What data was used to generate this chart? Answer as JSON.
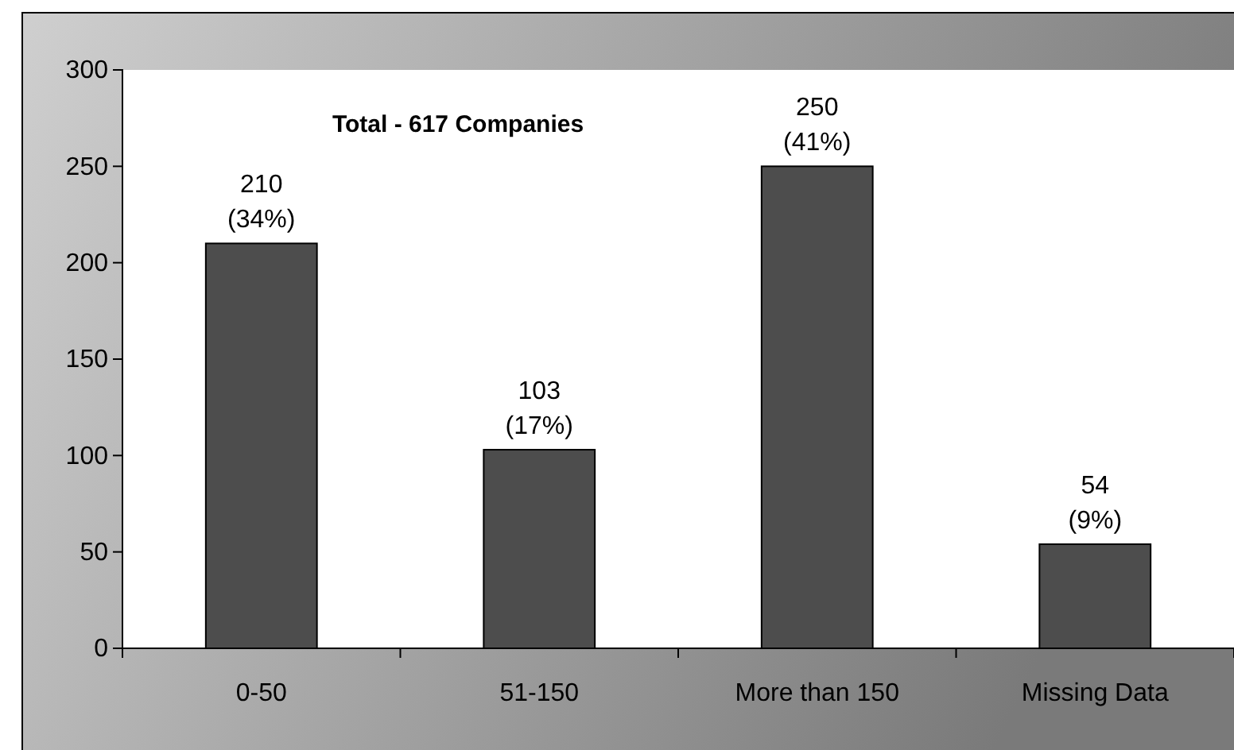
{
  "chart_data": {
    "type": "bar",
    "categories": [
      "0-50",
      "51-150",
      "More than 150",
      "Missing Data"
    ],
    "values": [
      210,
      103,
      250,
      54
    ],
    "value_labels": [
      "210\n(34%)",
      "103\n(17%)",
      "250\n(41%)",
      "54\n(9%)"
    ],
    "color": "#4d4d4d",
    "ylim": [
      0,
      300
    ],
    "yticks": [
      0,
      50,
      100,
      150,
      200,
      250,
      300
    ],
    "annotations": [
      "Total - 617 Companies"
    ],
    "grid": false
  }
}
